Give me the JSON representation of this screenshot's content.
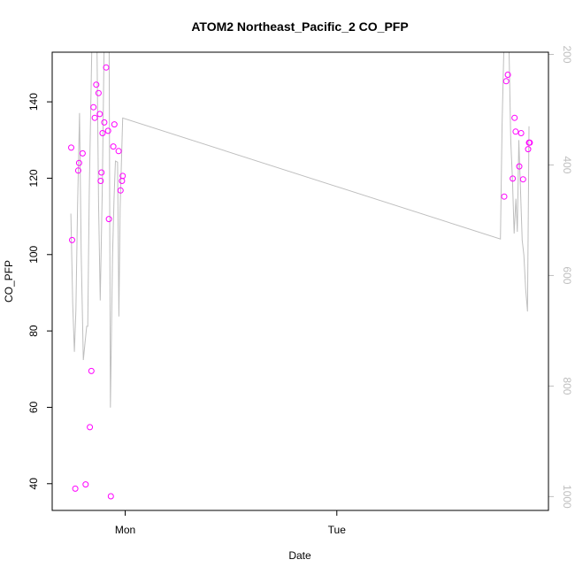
{
  "chart_data": {
    "type": "scatter",
    "title": "ATOM2 Northeast_Pacific_2 CO_PFP",
    "xlabel": "Date",
    "ylabel": "CO_PFP",
    "ylim": [
      33,
      153
    ],
    "y_ticks": [
      40,
      60,
      80,
      100,
      120,
      140
    ],
    "x_ticks": [
      {
        "label": "Mon",
        "t": 0
      },
      {
        "label": "Tue",
        "t": 1
      }
    ],
    "xlim": [
      -0.345,
      2.0
    ],
    "y2_ticks": [
      200,
      400,
      600,
      800,
      1000
    ],
    "y2lim": [
      1025,
      196
    ],
    "grid": false,
    "colors": {
      "points": "#ff00ff",
      "line": "#bebebe",
      "axis": "#000000",
      "right_axis": "#bebebe"
    },
    "series": [
      {
        "kind": "points",
        "x": [
          -0.255,
          -0.251,
          -0.236,
          -0.222,
          -0.218,
          -0.201,
          -0.187,
          -0.167,
          -0.16,
          -0.15,
          -0.144,
          -0.137,
          -0.126,
          -0.12,
          -0.116,
          -0.112,
          -0.107,
          -0.099,
          -0.09,
          -0.081,
          -0.077,
          -0.068,
          -0.056,
          -0.051,
          -0.031,
          -0.022,
          -0.015,
          -0.012,
          1.791,
          1.8,
          1.808,
          1.831,
          1.84,
          1.845,
          1.862,
          1.871,
          1.88,
          1.904,
          1.908,
          1.912
        ],
        "y": [
          128,
          103.8,
          38.7,
          122,
          124,
          126.5,
          39.8,
          54.8,
          69.5,
          138.6,
          135.8,
          144.5,
          142.3,
          136.8,
          119.3,
          121.5,
          131.8,
          134.6,
          149,
          132.4,
          109.3,
          36.7,
          128.3,
          134.1,
          127.1,
          116.8,
          119.3,
          120.6,
          115.2,
          145.4,
          147.1,
          119.9,
          135.8,
          132.2,
          123.1,
          131.8,
          119.7,
          127.6,
          129.3,
          129.3
        ]
      },
      {
        "kind": "line",
        "x": [
          -0.257,
          -0.248,
          -0.24,
          -0.233,
          -0.225,
          -0.216,
          -0.208,
          -0.198,
          -0.19,
          -0.182,
          -0.177,
          -0.17,
          -0.158,
          -0.147,
          -0.14,
          -0.133,
          -0.126,
          -0.118,
          -0.108,
          -0.1,
          -0.092,
          -0.084,
          -0.076,
          -0.07,
          -0.06,
          -0.053,
          -0.046,
          -0.036,
          -0.03,
          -0.024,
          -0.012,
          1.773,
          1.781,
          1.789,
          1.797,
          1.806,
          1.814,
          1.822,
          1.83,
          1.838,
          1.846,
          1.853,
          1.86,
          1.868,
          1.876,
          1.884,
          1.892,
          1.901,
          1.908
        ],
        "y2": [
          488,
          651,
          738,
          663,
          473,
          306,
          561,
          753,
          722,
          692,
          692,
          450,
          96,
          96,
          96,
          96,
          467,
          645,
          437,
          96,
          96,
          96,
          96,
          839,
          566,
          462,
          393,
          395,
          674,
          478,
          315,
          534,
          325,
          106,
          106,
          106,
          106,
          357,
          426,
          524,
          461,
          521,
          355,
          445,
          536,
          563,
          624,
          665,
          330
        ]
      }
    ]
  }
}
